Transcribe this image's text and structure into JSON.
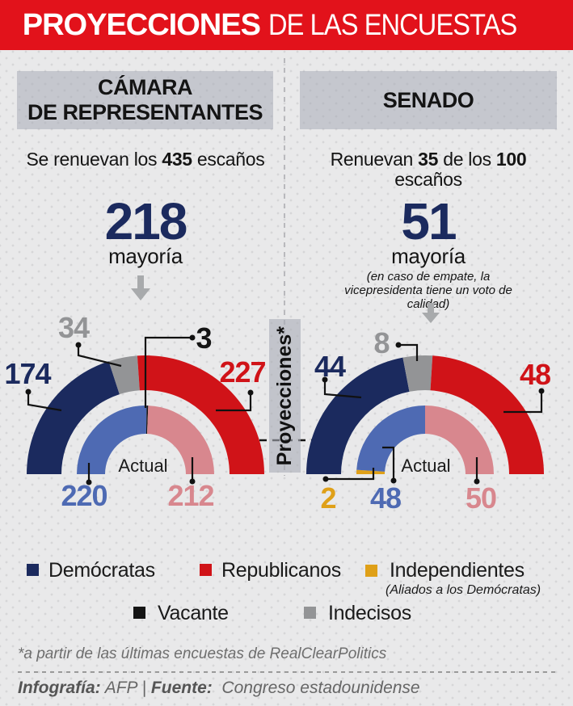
{
  "banner": {
    "bold": "PROYECCIONES",
    "rest": "DE LAS ENCUESTAS"
  },
  "divider_label": "Proyecciones*",
  "colors": {
    "banner_red": "#e2121b",
    "democratas": "#1b2a5e",
    "republicanos": "#d01318",
    "indecisos": "#939496",
    "vacante": "#141414",
    "independientes": "#dfa018",
    "democratas_actual": "#4e6ab3",
    "republicanos_actual": "#d8878e"
  },
  "columns": [
    {
      "header_line1": "CÁMARA",
      "header_line2": "DE REPRESENTANTES",
      "subtitle": {
        "p1": "Se renuevan los ",
        "b1": "435",
        "p2": " escaños",
        "b2": "",
        "p3": ""
      },
      "majority": {
        "number": "218",
        "label": "mayoría",
        "note": ""
      }
    },
    {
      "header_line1": "SENADO",
      "header_line2": "",
      "subtitle": {
        "p1": "Renuevan ",
        "b1": "35",
        "p2": " de los ",
        "b2": "100",
        "p3": " escaños"
      },
      "majority": {
        "number": "51",
        "label": "mayoría",
        "note": "(en caso de empate, la vicepresidenta tiene un voto de calidad)"
      }
    }
  ],
  "chart_data": [
    {
      "type": "donut-semicircle",
      "name": "Cámara de Representantes",
      "total": 435,
      "inner_ring_label": "Actual",
      "proyecciones": [
        {
          "party": "Demócratas",
          "value": 174,
          "color_key": "democratas"
        },
        {
          "party": "Indecisos",
          "value": 34,
          "color_key": "indecisos"
        },
        {
          "party": "Republicanos",
          "value": 227,
          "color_key": "republicanos"
        }
      ],
      "actual": [
        {
          "party": "Demócratas",
          "value": 220,
          "color_key": "democratas_actual"
        },
        {
          "party": "Vacante",
          "value": 3,
          "color_key": "vacante"
        },
        {
          "party": "Republicanos",
          "value": 212,
          "color_key": "republicanos_actual"
        }
      ]
    },
    {
      "type": "donut-semicircle",
      "name": "Senado",
      "total": 100,
      "inner_ring_label": "Actual",
      "proyecciones": [
        {
          "party": "Demócratas",
          "value": 44,
          "color_key": "democratas"
        },
        {
          "party": "Indecisos",
          "value": 8,
          "color_key": "indecisos"
        },
        {
          "party": "Republicanos",
          "value": 48,
          "color_key": "republicanos"
        }
      ],
      "actual": [
        {
          "party": "Independientes",
          "value": 2,
          "color_key": "independientes"
        },
        {
          "party": "Demócratas",
          "value": 48,
          "color_key": "democratas_actual"
        },
        {
          "party": "Republicanos",
          "value": 50,
          "color_key": "republicanos_actual"
        }
      ]
    }
  ],
  "legend": {
    "items": [
      {
        "label": "Demócratas",
        "color_key": "democratas",
        "note": ""
      },
      {
        "label": "Republicanos",
        "color_key": "republicanos",
        "note": ""
      },
      {
        "label": "Independientes",
        "color_key": "independientes",
        "note": "(Aliados a los Demócratas)"
      },
      {
        "label": "Vacante",
        "color_key": "vacante",
        "note": ""
      },
      {
        "label": "Indecisos",
        "color_key": "indecisos",
        "note": ""
      }
    ]
  },
  "footnote": "*a partir de las últimas encuestas de RealClearPolitics",
  "credits": {
    "label1": "Infografía:",
    "value1": " AFP ",
    "sep": "| ",
    "label2": "Fuente:",
    "value2": "  Congreso estadounidense"
  }
}
